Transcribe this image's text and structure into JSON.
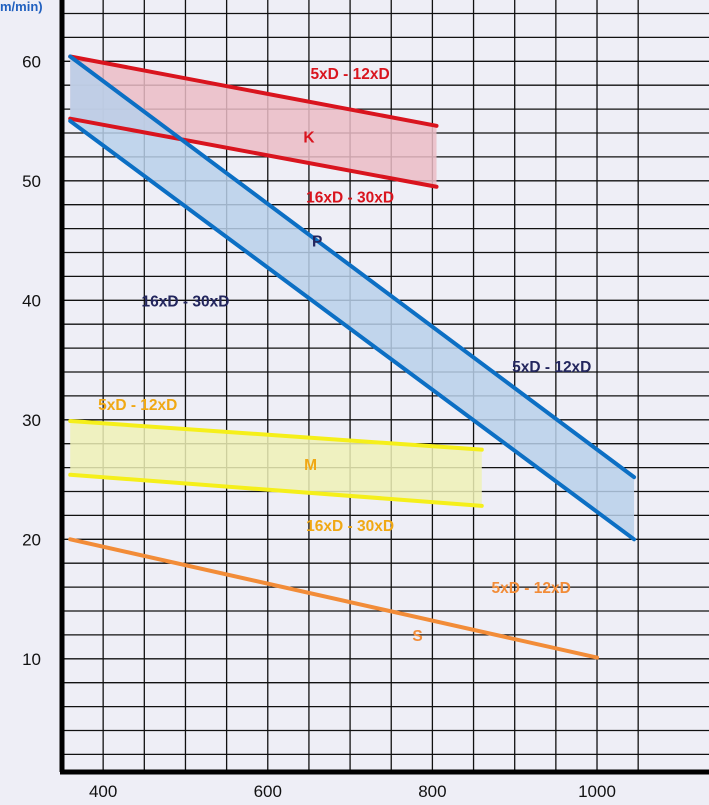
{
  "chart_data": {
    "type": "line",
    "ylabel": "m/min)",
    "ylabel_color": "#1f5fbf",
    "xlim": [
      350,
      1050
    ],
    "ylim": [
      0,
      64
    ],
    "x_ticks": [
      400,
      600,
      800,
      1000
    ],
    "y_ticks": [
      10,
      20,
      30,
      40,
      50,
      60
    ],
    "grid": true,
    "bands": [
      {
        "name": "K",
        "color": "#d9141e",
        "fill": "#ebbcc6",
        "upper": {
          "label": "5xD - 12xD",
          "points": [
            [
              360,
              60.4
            ],
            [
              805,
              54.6
            ]
          ]
        },
        "lower": {
          "label": "16xD - 30xD",
          "points": [
            [
              360,
              55.2
            ],
            [
              805,
              49.5
            ]
          ]
        }
      },
      {
        "name": "P",
        "color": "#0c6fc4",
        "fill": "#b8d0ea",
        "upper": {
          "label": "5xD - 12xD",
          "points": [
            [
              360,
              60.4
            ],
            [
              1045,
              25.2
            ]
          ]
        },
        "lower": {
          "label": "16xD - 30xD",
          "points": [
            [
              360,
              55.0
            ],
            [
              1045,
              20.0
            ]
          ]
        }
      },
      {
        "name": "M",
        "color": "#f5ef1a",
        "fill": "#eef1b6",
        "upper": {
          "label": "5xD - 12xD",
          "points": [
            [
              360,
              29.9
            ],
            [
              860,
              27.5
            ]
          ]
        },
        "lower": {
          "label": "16xD - 30xD",
          "points": [
            [
              360,
              25.4
            ],
            [
              860,
              22.8
            ]
          ]
        }
      },
      {
        "name": "S",
        "color": "#f28c38",
        "fill": null,
        "upper": {
          "label": "5xD - 12xD",
          "points": [
            [
              360,
              20.0
            ],
            [
              1000,
              10.1
            ]
          ]
        },
        "lower": null
      }
    ],
    "labels": [
      {
        "text": "5xD - 12xD",
        "color": "#d9141e",
        "x": 700,
        "y": 58.5,
        "anchor": "middle"
      },
      {
        "text": "K",
        "color": "#d9141e",
        "x": 650,
        "y": 53.2,
        "anchor": "middle"
      },
      {
        "text": "16xD - 30xD",
        "color": "#d9141e",
        "x": 700,
        "y": 48.2,
        "anchor": "middle"
      },
      {
        "text": "P",
        "color": "#23265e",
        "x": 660,
        "y": 44.5,
        "anchor": "middle"
      },
      {
        "text": "16xD - 30xD",
        "color": "#23265e",
        "x": 500,
        "y": 39.5,
        "anchor": "middle"
      },
      {
        "text": "5xD - 12xD",
        "color": "#23265e",
        "x": 945,
        "y": 34.0,
        "anchor": "middle"
      },
      {
        "text": "5xD - 12xD",
        "color": "#f0a814",
        "x": 442,
        "y": 30.8,
        "anchor": "middle"
      },
      {
        "text": "M",
        "color": "#f0a814",
        "x": 652,
        "y": 25.8,
        "anchor": "middle"
      },
      {
        "text": "16xD - 30xD",
        "color": "#f0a814",
        "x": 700,
        "y": 20.7,
        "anchor": "middle"
      },
      {
        "text": "5xD - 12xD",
        "color": "#f28c38",
        "x": 920,
        "y": 15.5,
        "anchor": "middle"
      },
      {
        "text": "S",
        "color": "#f28c38",
        "x": 782,
        "y": 11.5,
        "anchor": "middle"
      }
    ]
  }
}
